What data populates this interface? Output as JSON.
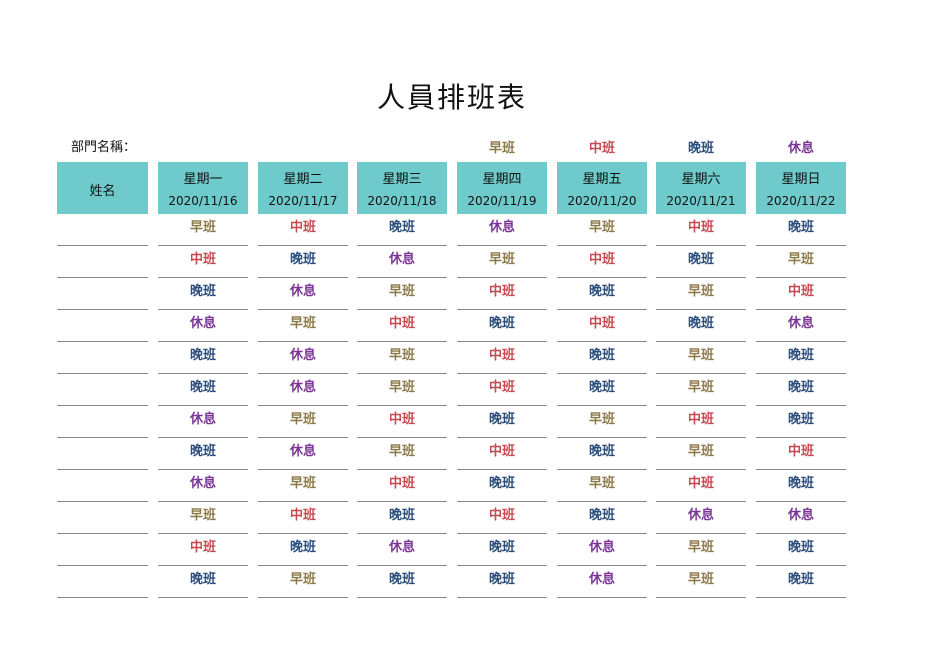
{
  "title": "人員排班表",
  "department_label": "部門名稱：",
  "legend": [
    {
      "key": "early",
      "label": "早班",
      "color": "#8c7a4a"
    },
    {
      "key": "mid",
      "label": "中班",
      "color": "#c64a50"
    },
    {
      "key": "late",
      "label": "晚班",
      "color": "#2a4d7c"
    },
    {
      "key": "rest",
      "label": "休息",
      "color": "#7b3596"
    }
  ],
  "header": {
    "name_label": "姓名",
    "header_color": "#6fcacb",
    "days": [
      {
        "day": "星期一",
        "date": "2020/11/16"
      },
      {
        "day": "星期二",
        "date": "2020/11/17"
      },
      {
        "day": "星期三",
        "date": "2020/11/18"
      },
      {
        "day": "星期四",
        "date": "2020/11/19"
      },
      {
        "day": "星期五",
        "date": "2020/11/20"
      },
      {
        "day": "星期六",
        "date": "2020/11/21"
      },
      {
        "day": "星期日",
        "date": "2020/11/22"
      }
    ]
  },
  "rows": [
    {
      "name": "",
      "shifts": [
        "早班",
        "中班",
        "晚班",
        "休息",
        "早班",
        "中班",
        "晚班"
      ]
    },
    {
      "name": "",
      "shifts": [
        "中班",
        "晚班",
        "休息",
        "早班",
        "中班",
        "晚班",
        "早班"
      ]
    },
    {
      "name": "",
      "shifts": [
        "晚班",
        "休息",
        "早班",
        "中班",
        "晚班",
        "早班",
        "中班"
      ]
    },
    {
      "name": "",
      "shifts": [
        "休息",
        "早班",
        "中班",
        "晚班",
        "中班",
        "晚班",
        "休息"
      ]
    },
    {
      "name": "",
      "shifts": [
        "晚班",
        "休息",
        "早班",
        "中班",
        "晚班",
        "早班",
        "晚班"
      ]
    },
    {
      "name": "",
      "shifts": [
        "晚班",
        "休息",
        "早班",
        "中班",
        "晚班",
        "早班",
        "晚班"
      ]
    },
    {
      "name": "",
      "shifts": [
        "休息",
        "早班",
        "中班",
        "晚班",
        "早班",
        "中班",
        "晚班"
      ]
    },
    {
      "name": "",
      "shifts": [
        "晚班",
        "休息",
        "早班",
        "中班",
        "晚班",
        "早班",
        "中班"
      ]
    },
    {
      "name": "",
      "shifts": [
        "休息",
        "早班",
        "中班",
        "晚班",
        "早班",
        "中班",
        "晚班"
      ]
    },
    {
      "name": "",
      "shifts": [
        "早班",
        "中班",
        "晚班",
        "中班",
        "晚班",
        "休息",
        "休息"
      ]
    },
    {
      "name": "",
      "shifts": [
        "中班",
        "晚班",
        "休息",
        "晚班",
        "休息",
        "早班",
        "晚班"
      ]
    },
    {
      "name": "",
      "shifts": [
        "晚班",
        "早班",
        "晚班",
        "晚班",
        "休息",
        "早班",
        "晚班"
      ]
    }
  ]
}
